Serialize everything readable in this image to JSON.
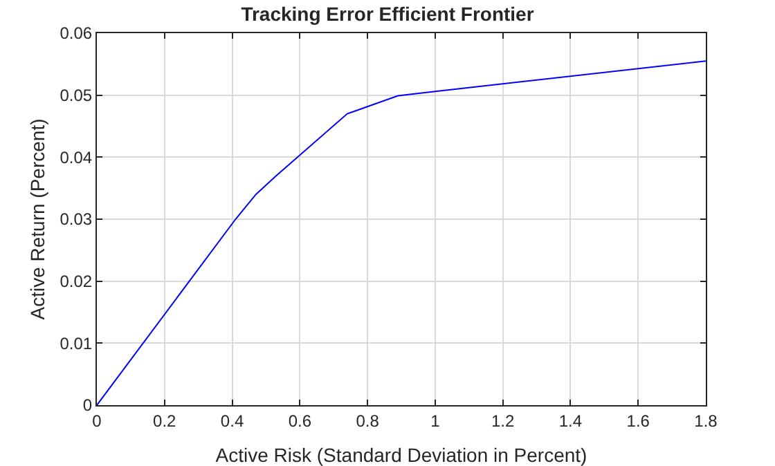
{
  "chart_data": {
    "type": "line",
    "title": "Tracking Error Efficient Frontier",
    "xlabel": "Active Risk (Standard Deviation in Percent)",
    "ylabel": "Active Return (Percent)",
    "x": [
      0,
      0.41,
      0.47,
      0.53,
      0.74,
      0.89,
      1.0,
      1.8
    ],
    "series": [
      {
        "color": "#0000ff",
        "values": [
          0,
          0.03,
          0.034,
          0.037,
          0.047,
          0.0499,
          0.0506,
          0.0555
        ]
      }
    ],
    "xlim": [
      0,
      1.8
    ],
    "xticks": [
      0,
      0.2,
      0.4,
      0.6,
      0.8,
      1,
      1.2,
      1.4,
      1.6,
      1.8
    ],
    "ylim": [
      0,
      0.06
    ],
    "yticks": [
      0,
      0.01,
      0.02,
      0.03,
      0.04,
      0.05,
      0.06
    ],
    "grid": true,
    "marker": "none",
    "line_style": "solid"
  }
}
